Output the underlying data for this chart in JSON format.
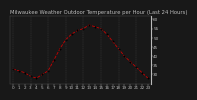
{
  "title": "Milwaukee Weather Outdoor Temperature per Hour (Last 24 Hours)",
  "hours": [
    0,
    1,
    2,
    3,
    4,
    5,
    6,
    7,
    8,
    9,
    10,
    11,
    12,
    13,
    14,
    15,
    16,
    17,
    18,
    19,
    20,
    21,
    22,
    23
  ],
  "temps": [
    33,
    32,
    31,
    29,
    28,
    30,
    32,
    38,
    44,
    49,
    52,
    54,
    55,
    57,
    56,
    55,
    52,
    48,
    44,
    40,
    37,
    34,
    31,
    28
  ],
  "line_color": "#cc0000",
  "marker_color": "#000000",
  "bg_color": "#181818",
  "plot_bg": "#181818",
  "text_color": "#bbbbbb",
  "grid_color": "#555555",
  "ylim": [
    25,
    62
  ],
  "yticks": [
    30,
    35,
    40,
    45,
    50,
    55,
    60
  ],
  "title_fontsize": 3.8,
  "tick_fontsize": 3.0
}
